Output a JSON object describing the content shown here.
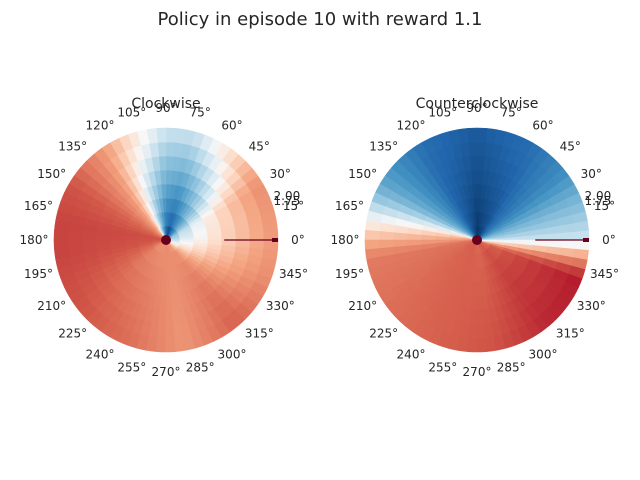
{
  "figure": {
    "title": "Policy in episode 10 with reward 1.1"
  },
  "chart_data": [
    {
      "type": "heatmap",
      "projection": "polar",
      "title": "Clockwise",
      "theta_ticks_deg": [
        0,
        15,
        30,
        45,
        60,
        75,
        90,
        105,
        120,
        135,
        150,
        165,
        180,
        195,
        210,
        225,
        240,
        255,
        270,
        285,
        300,
        315,
        330,
        345
      ],
      "theta_tick_labels": [
        "0°",
        "15°",
        "30°",
        "45°",
        "60°",
        "75°",
        "90°",
        "105°",
        "120°",
        "135°",
        "150°",
        "165°",
        "180°",
        "195°",
        "210°",
        "225°",
        "240°",
        "255°",
        "270°",
        "285°",
        "300°",
        "315°",
        "330°",
        "345°"
      ],
      "r_tick_labels": [
        "2.00",
        "1.75"
      ],
      "colormap": "RdBu",
      "angle_samples_deg": [
        0,
        30,
        60,
        75,
        90,
        110,
        130,
        150,
        170,
        190,
        220,
        250,
        280,
        310,
        340,
        360
      ],
      "inner_values": [
        -0.2,
        -0.35,
        -0.8,
        -1.0,
        -0.85,
        -0.35,
        0.2,
        0.4,
        0.55,
        0.5,
        0.3,
        0.3,
        0.35,
        0.25,
        -0.05,
        -0.2
      ],
      "outer_values": [
        0.3,
        0.35,
        0.05,
        -0.1,
        -0.1,
        0.1,
        0.35,
        0.55,
        0.6,
        0.6,
        0.55,
        0.45,
        0.3,
        0.5,
        0.35,
        0.3
      ]
    },
    {
      "type": "heatmap",
      "projection": "polar",
      "title": "Counterclockwise",
      "theta_ticks_deg": [
        0,
        15,
        30,
        45,
        60,
        75,
        90,
        105,
        120,
        135,
        150,
        165,
        180,
        195,
        210,
        225,
        240,
        255,
        270,
        285,
        300,
        315,
        330,
        345
      ],
      "theta_tick_labels": [
        "0°",
        "15°",
        "30°",
        "45°",
        "60°",
        "75°",
        "90°",
        "105°",
        "120°",
        "135°",
        "150°",
        "165°",
        "180°",
        "195°",
        "210°",
        "225°",
        "240°",
        "255°",
        "270°",
        "285°",
        "300°",
        "315°",
        "330°",
        "345°"
      ],
      "r_tick_labels": [
        "2.00",
        "1.75"
      ],
      "colormap": "RdBu",
      "angle_samples_deg": [
        0,
        20,
        40,
        60,
        90,
        120,
        150,
        170,
        190,
        220,
        250,
        280,
        310,
        340,
        360
      ],
      "inner_values": [
        -0.1,
        -0.4,
        -0.7,
        -0.9,
        -1.0,
        -0.8,
        -0.3,
        0.2,
        0.45,
        0.5,
        0.5,
        0.45,
        0.5,
        0.4,
        -0.1
      ],
      "outer_values": [
        -0.1,
        -0.3,
        -0.55,
        -0.7,
        -0.8,
        -0.7,
        -0.4,
        0.0,
        0.4,
        0.45,
        0.5,
        0.55,
        0.7,
        0.75,
        -0.1
      ]
    }
  ],
  "colors": {
    "center_marker": "#67001f",
    "radial_line": "#67001f",
    "tick_text": "#262626"
  }
}
